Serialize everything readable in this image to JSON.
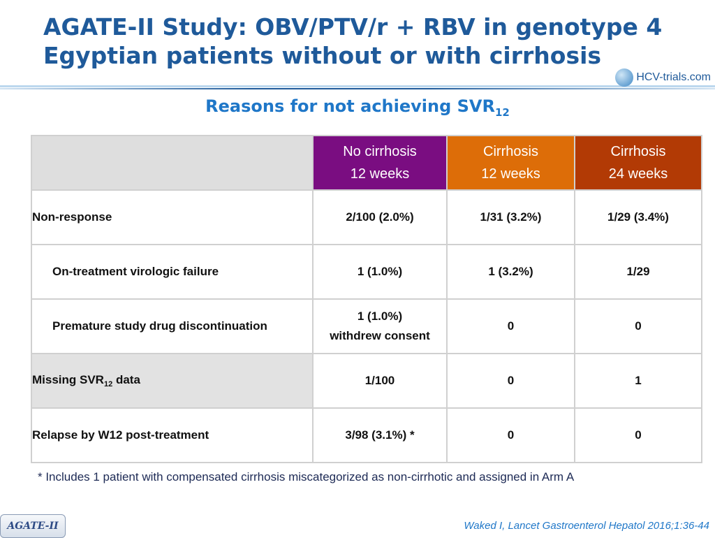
{
  "title": {
    "line1": "AGATE-II Study: OBV/PTV/r + RBV in genotype 4",
    "line2": "Egyptian patients without or with cirrhosis"
  },
  "logo": {
    "text": "HCV-trials",
    "domain": ".com"
  },
  "subtitle": {
    "text": "Reasons for not achieving SVR",
    "sub": "12"
  },
  "table": {
    "headers": [
      {
        "line1": "No cirrhosis",
        "line2": "12 weeks",
        "color": "#7a0d81"
      },
      {
        "line1": "Cirrhosis",
        "line2": "12 weeks",
        "color": "#dd6d08"
      },
      {
        "line1": "Cirrhosis",
        "line2": "24 weeks",
        "color": "#b23a05"
      }
    ],
    "rows": [
      {
        "label": "Non-response",
        "c1": "2/100  (2.0%)",
        "c2": "1/31 (3.2%)",
        "c3": "1/29 (3.4%)"
      },
      {
        "label": "On-treatment virologic failure",
        "c1": "1 (1.0%)",
        "c2": "1 (3.2%)",
        "c3": "1/29"
      },
      {
        "label": "Premature study drug discontinuation",
        "c1a": "1 (1.0%)",
        "c1b": "withdrew consent",
        "c2": "0",
        "c3": "0"
      },
      {
        "label": "Missing SVR",
        "label_sub": "12",
        "label_suffix": " data",
        "c1": "1/100",
        "c2": "0",
        "c3": "1"
      },
      {
        "label": "Relapse by W12 post-treatment",
        "c1": "3/98 (3.1%) *",
        "c2": "0",
        "c3": "0"
      }
    ]
  },
  "footnote": "* Includes 1 patient with compensated cirrhosis miscategorized as non-cirrhotic and assigned in Arm A",
  "badge": "AGATE-II",
  "citation": "Waked I, Lancet Gastroenterol Hepatol 2016;1:36-44",
  "colors": {
    "title": "#1f5a9a",
    "subtitle": "#1f77c8",
    "rule_light": "#9fc6e6",
    "rule_dark": "#1f5a9a"
  }
}
